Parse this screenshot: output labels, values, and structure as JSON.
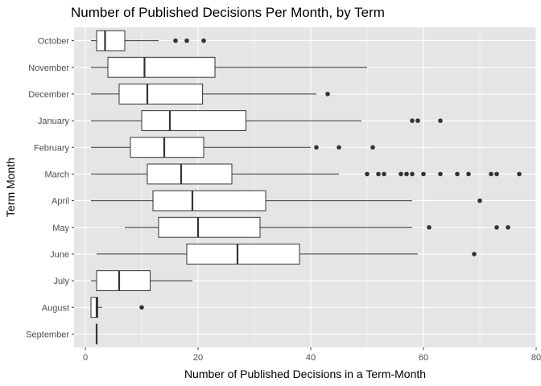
{
  "chart_data": {
    "type": "boxplot",
    "title": "Number of Published Decisions Per Month, by Term",
    "xlabel": "Number of Published Decisions in a Term-Month",
    "ylabel": "Term Month",
    "xlim": [
      -2,
      80
    ],
    "xticks": [
      0,
      20,
      40,
      60,
      80
    ],
    "grid": true,
    "colors": {
      "panel": "#e5e5e5",
      "grid_major": "#ffffff",
      "box_fill": "#ffffff",
      "box_line": "#333333",
      "outlier": "#333333"
    },
    "categories": [
      "October",
      "November",
      "December",
      "January",
      "February",
      "March",
      "April",
      "May",
      "June",
      "July",
      "August",
      "September"
    ],
    "boxes": [
      {
        "label": "October",
        "min": 1,
        "q1": 2,
        "median": 3.5,
        "q3": 7,
        "max": 13,
        "outliers": [
          16,
          18,
          21
        ]
      },
      {
        "label": "November",
        "min": 1,
        "q1": 4,
        "median": 10.5,
        "q3": 23,
        "max": 50,
        "outliers": []
      },
      {
        "label": "December",
        "min": 1,
        "q1": 6,
        "median": 11,
        "q3": 20.8,
        "max": 41,
        "outliers": [
          43
        ]
      },
      {
        "label": "January",
        "min": 1,
        "q1": 10,
        "median": 15,
        "q3": 28.5,
        "max": 49,
        "outliers": [
          58,
          59,
          63
        ]
      },
      {
        "label": "February",
        "min": 1,
        "q1": 8,
        "median": 14,
        "q3": 21,
        "max": 40,
        "outliers": [
          41,
          45,
          51
        ]
      },
      {
        "label": "March",
        "min": 1,
        "q1": 11,
        "median": 17,
        "q3": 26,
        "max": 45,
        "outliers": [
          50,
          52,
          53,
          56,
          57,
          58,
          60,
          63,
          66,
          68,
          72,
          73,
          77
        ]
      },
      {
        "label": "April",
        "min": 1,
        "q1": 12,
        "median": 19,
        "q3": 32,
        "max": 58,
        "outliers": [
          70
        ]
      },
      {
        "label": "May",
        "min": 7,
        "q1": 13,
        "median": 20,
        "q3": 31,
        "max": 58,
        "outliers": [
          61,
          73,
          75
        ]
      },
      {
        "label": "June",
        "min": 2,
        "q1": 18,
        "median": 27,
        "q3": 38,
        "max": 59,
        "outliers": [
          69
        ]
      },
      {
        "label": "July",
        "min": 1,
        "q1": 2,
        "median": 6,
        "q3": 11.5,
        "max": 19,
        "outliers": []
      },
      {
        "label": "August",
        "min": 1,
        "q1": 1,
        "median": 2,
        "q3": 2.2,
        "max": 3,
        "outliers": [
          10
        ]
      },
      {
        "label": "September",
        "min": 2,
        "q1": 2,
        "median": 2,
        "q3": 2,
        "max": 2,
        "outliers": []
      }
    ]
  }
}
